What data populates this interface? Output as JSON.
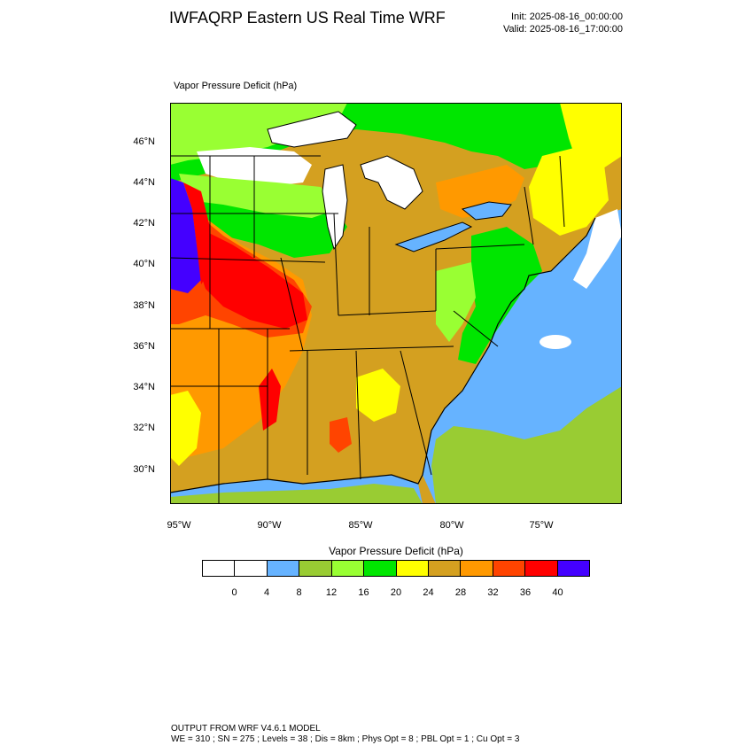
{
  "header": {
    "title": "IWFAQRP Eastern US Real Time WRF",
    "init": "Init: 2025-08-16_00:00:00",
    "valid": "Valid: 2025-08-16_17:00:00"
  },
  "map": {
    "field_label": "Vapor Pressure Deficit   (hPa)",
    "lat_ticks": [
      "46°N",
      "44°N",
      "42°N",
      "40°N",
      "38°N",
      "36°N",
      "34°N",
      "32°N",
      "30°N"
    ],
    "lon_ticks": [
      "95°W",
      "90°W",
      "85°W",
      "80°W",
      "75°W"
    ],
    "colors": {
      "water": "#66b3ff",
      "land_low": "#99cc33",
      "green": "#00e600",
      "light_green": "#99ff33",
      "yellow": "#ffff00",
      "tan": "#d4a020",
      "orange": "#ff9900",
      "red_orange": "#ff4400",
      "red": "#ff0000",
      "purple": "#4400ff",
      "white": "#ffffff",
      "border": "#000000"
    }
  },
  "colorbar": {
    "title": "Vapor Pressure Deficit  (hPa)",
    "labels": [
      "0",
      "4",
      "8",
      "12",
      "16",
      "20",
      "24",
      "28",
      "32",
      "36",
      "40"
    ],
    "colors": [
      "#ffffff",
      "#ffffff",
      "#66b3ff",
      "#99cc33",
      "#99ff33",
      "#00e600",
      "#ffff00",
      "#d4a020",
      "#ff9900",
      "#ff4400",
      "#ff0000",
      "#4400ff"
    ]
  },
  "footer": {
    "line1": "OUTPUT FROM WRF V4.6.1 MODEL",
    "line2": "WE = 310 ; SN = 275 ; Levels = 38 ; Dis = 8km ; Phys Opt = 8 ; PBL Opt = 1 ; Cu Opt = 3"
  }
}
